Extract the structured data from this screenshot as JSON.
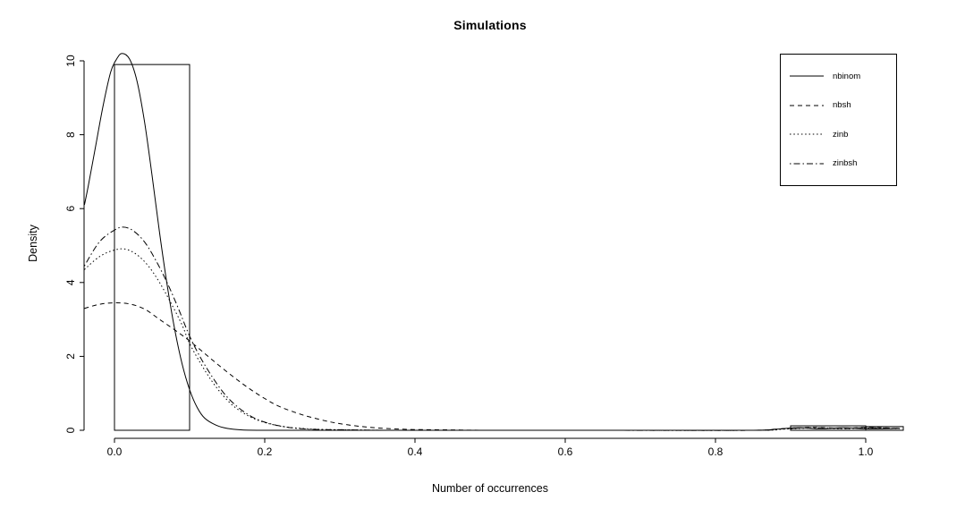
{
  "title": "Simulations",
  "colors": {
    "foreground": "#000000",
    "background": "#ffffff"
  },
  "chart_data": {
    "type": "line",
    "title": "Simulations",
    "xlabel": "Number of occurrences",
    "ylabel": "Density",
    "xlim": [
      -0.04,
      1.05
    ],
    "ylim": [
      0,
      10.3
    ],
    "grid": false,
    "legend_position": "top-right",
    "x_ticks": [
      0,
      0.2,
      0.4,
      0.6,
      0.8,
      1.0
    ],
    "x_tick_labels": [
      "0.0",
      "0.2",
      "0.4",
      "0.6",
      "0.8",
      "1.0"
    ],
    "y_ticks": [
      0,
      2,
      4,
      6,
      8,
      10
    ],
    "y_tick_labels": [
      "0",
      "2",
      "4",
      "6",
      "8",
      "10"
    ],
    "histogram_bars": [
      {
        "x0": 0.0,
        "x1": 0.1,
        "height": 9.9
      },
      {
        "x0": 0.9,
        "x1": 1.0,
        "height": 0.12
      },
      {
        "x0": 1.0,
        "x1": 1.05,
        "height": 0.1
      }
    ],
    "series": [
      {
        "name": "nbinom",
        "style": "solid",
        "points": [
          [
            -0.04,
            6.1
          ],
          [
            -0.035,
            6.6
          ],
          [
            -0.025,
            7.7
          ],
          [
            -0.015,
            8.8
          ],
          [
            -0.005,
            9.7
          ],
          [
            0.003,
            10.05
          ],
          [
            0.01,
            10.2
          ],
          [
            0.02,
            10.05
          ],
          [
            0.03,
            9.45
          ],
          [
            0.04,
            8.35
          ],
          [
            0.05,
            6.9
          ],
          [
            0.06,
            5.35
          ],
          [
            0.07,
            3.95
          ],
          [
            0.08,
            2.75
          ],
          [
            0.09,
            1.8
          ],
          [
            0.1,
            1.1
          ],
          [
            0.11,
            0.62
          ],
          [
            0.12,
            0.33
          ],
          [
            0.135,
            0.14
          ],
          [
            0.15,
            0.05
          ],
          [
            0.17,
            0.01
          ],
          [
            0.2,
            0
          ],
          [
            0.3,
            0
          ],
          [
            0.5,
            0
          ],
          [
            0.7,
            0
          ],
          [
            0.85,
            0
          ],
          [
            0.88,
            0.03
          ],
          [
            0.91,
            0.07
          ],
          [
            0.94,
            0.04
          ],
          [
            0.97,
            0.07
          ],
          [
            1.0,
            0.04
          ],
          [
            1.045,
            0.05
          ]
        ]
      },
      {
        "name": "nbsh",
        "style": "dashed",
        "points": [
          [
            -0.04,
            3.3
          ],
          [
            -0.02,
            3.41
          ],
          [
            0.0,
            3.45
          ],
          [
            0.02,
            3.42
          ],
          [
            0.04,
            3.28
          ],
          [
            0.06,
            3.0
          ],
          [
            0.08,
            2.72
          ],
          [
            0.1,
            2.42
          ],
          [
            0.12,
            2.08
          ],
          [
            0.14,
            1.74
          ],
          [
            0.16,
            1.42
          ],
          [
            0.18,
            1.12
          ],
          [
            0.2,
            0.86
          ],
          [
            0.22,
            0.64
          ],
          [
            0.25,
            0.42
          ],
          [
            0.28,
            0.26
          ],
          [
            0.3,
            0.18
          ],
          [
            0.33,
            0.1
          ],
          [
            0.36,
            0.05
          ],
          [
            0.4,
            0.02
          ],
          [
            0.45,
            0.01
          ],
          [
            0.5,
            0
          ],
          [
            0.7,
            0
          ],
          [
            0.85,
            0
          ],
          [
            0.89,
            0.04
          ],
          [
            0.93,
            0.08
          ],
          [
            0.97,
            0.05
          ],
          [
            1.0,
            0.08
          ],
          [
            1.045,
            0.05
          ]
        ]
      },
      {
        "name": "zinb",
        "style": "dotted",
        "points": [
          [
            -0.04,
            4.35
          ],
          [
            -0.02,
            4.7
          ],
          [
            0.0,
            4.88
          ],
          [
            0.015,
            4.9
          ],
          [
            0.03,
            4.75
          ],
          [
            0.045,
            4.45
          ],
          [
            0.06,
            4.0
          ],
          [
            0.075,
            3.45
          ],
          [
            0.09,
            2.85
          ],
          [
            0.1,
            2.35
          ],
          [
            0.115,
            1.8
          ],
          [
            0.13,
            1.32
          ],
          [
            0.145,
            0.93
          ],
          [
            0.16,
            0.63
          ],
          [
            0.18,
            0.37
          ],
          [
            0.2,
            0.21
          ],
          [
            0.225,
            0.1
          ],
          [
            0.25,
            0.05
          ],
          [
            0.28,
            0.02
          ],
          [
            0.32,
            0.01
          ],
          [
            0.37,
            0
          ],
          [
            0.6,
            0
          ],
          [
            0.85,
            0
          ],
          [
            0.89,
            0.03
          ],
          [
            0.93,
            0.06
          ],
          [
            0.97,
            0.04
          ],
          [
            1.0,
            0.06
          ],
          [
            1.045,
            0.04
          ]
        ]
      },
      {
        "name": "zinbsh",
        "style": "dashdot",
        "points": [
          [
            -0.04,
            4.45
          ],
          [
            -0.02,
            5.1
          ],
          [
            0.0,
            5.42
          ],
          [
            0.012,
            5.5
          ],
          [
            0.025,
            5.4
          ],
          [
            0.04,
            5.1
          ],
          [
            0.055,
            4.6
          ],
          [
            0.07,
            4.0
          ],
          [
            0.085,
            3.3
          ],
          [
            0.1,
            2.55
          ],
          [
            0.115,
            1.95
          ],
          [
            0.13,
            1.45
          ],
          [
            0.145,
            1.02
          ],
          [
            0.16,
            0.7
          ],
          [
            0.18,
            0.4
          ],
          [
            0.2,
            0.22
          ],
          [
            0.225,
            0.1
          ],
          [
            0.25,
            0.04
          ],
          [
            0.28,
            0.02
          ],
          [
            0.32,
            0.01
          ],
          [
            0.37,
            0
          ],
          [
            0.6,
            0
          ],
          [
            0.85,
            0
          ],
          [
            0.89,
            0.04
          ],
          [
            0.93,
            0.07
          ],
          [
            0.97,
            0.05
          ],
          [
            1.0,
            0.07
          ],
          [
            1.045,
            0.05
          ]
        ]
      }
    ]
  }
}
